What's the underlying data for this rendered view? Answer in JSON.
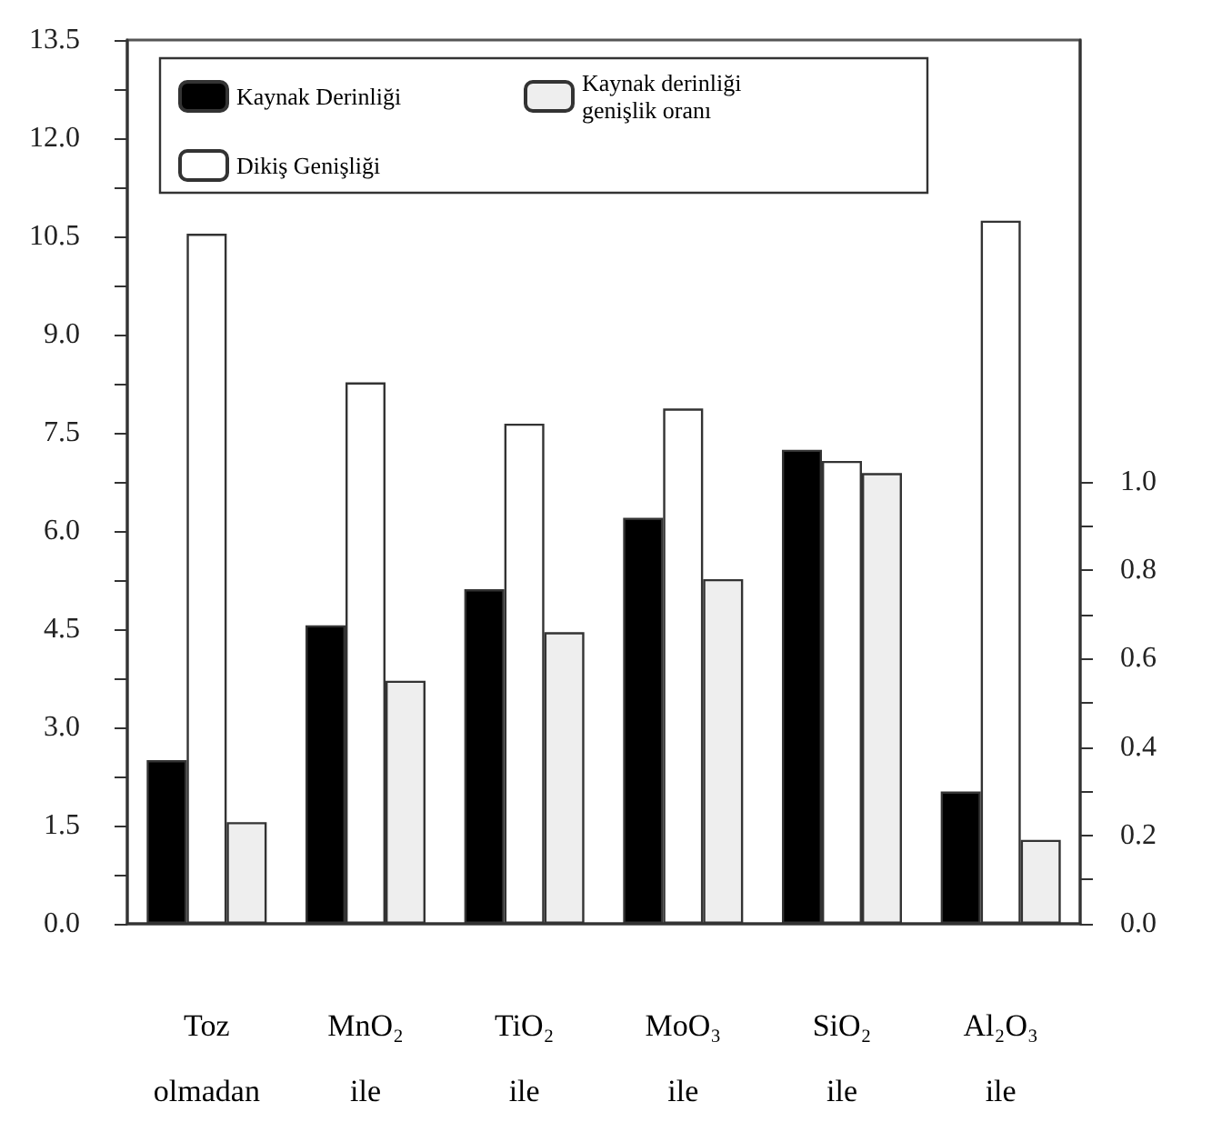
{
  "chart_data": {
    "type": "bar",
    "categories": [
      "Toz\nolmadan",
      "MnO₂\nile",
      "TiO₂\nile",
      "MoO₃\nile",
      "SiO₂\nile",
      "Al₂O₃\nile"
    ],
    "series": [
      {
        "name": "Kaynak Derinliği",
        "color": "#000000",
        "values": [
          2.5,
          4.56,
          5.11,
          6.2,
          7.24,
          2.02
        ]
      },
      {
        "name": "Dikiş Genişliği",
        "color": "#ffffff",
        "values": [
          10.54,
          8.27,
          7.64,
          7.87,
          7.07,
          10.74
        ]
      },
      {
        "name": "Kaynak derinliği\ngenişlik oranı",
        "color": "#eeeeee",
        "axis": "y2",
        "values": [
          0.23,
          0.55,
          0.66,
          0.78,
          1.02,
          0.19
        ]
      }
    ],
    "ylim": [
      0,
      13.5
    ],
    "yticks": [
      {
        "value": 0,
        "label": "0.0"
      },
      {
        "value": 0.75,
        "label": null
      },
      {
        "value": 1.5,
        "label": "1.5"
      },
      {
        "value": 2.25,
        "label": null
      },
      {
        "value": 3,
        "label": "3.0"
      },
      {
        "value": 3.75,
        "label": null
      },
      {
        "value": 4.5,
        "label": "4.5"
      },
      {
        "value": 5.25,
        "label": null
      },
      {
        "value": 6,
        "label": "6.0"
      },
      {
        "value": 6.75,
        "label": null
      },
      {
        "value": 7.5,
        "label": "7.5"
      },
      {
        "value": 8.25,
        "label": null
      },
      {
        "value": 9,
        "label": "9.0"
      },
      {
        "value": 9.75,
        "label": null
      },
      {
        "value": 10.5,
        "label": "10.5"
      },
      {
        "value": 11.25,
        "label": null
      },
      {
        "value": 12,
        "label": "12.0"
      },
      {
        "value": 12.75,
        "label": null
      },
      {
        "value": 13.5,
        "label": "13.5"
      }
    ],
    "y2lim": [
      0,
      2
    ],
    "y2ticks": [
      {
        "value": 0,
        "label": "0.0"
      },
      {
        "value": 0.1,
        "label": null
      },
      {
        "value": 0.2,
        "label": "0.2"
      },
      {
        "value": 0.3,
        "label": null
      },
      {
        "value": 0.4,
        "label": "0.4"
      },
      {
        "value": 0.5,
        "label": null
      },
      {
        "value": 0.6,
        "label": "0.6"
      },
      {
        "value": 0.7,
        "label": null
      },
      {
        "value": 0.8,
        "label": "0.8"
      },
      {
        "value": 0.9,
        "label": null
      },
      {
        "value": 1,
        "label": "1.0"
      }
    ],
    "legend": "top",
    "grid": false
  }
}
